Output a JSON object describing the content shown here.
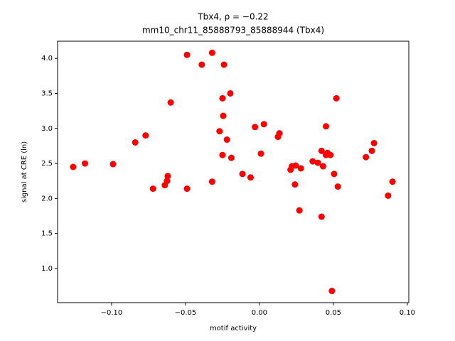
{
  "chart_data": {
    "type": "scatter",
    "title": "Tbx4, ρ = −0.22",
    "subtitle": "mm10_chr11_85888793_85888944 (Tbx4)",
    "x_label": "motif activity",
    "y_label": "signal at CRE (ln)",
    "color": "#ff0000",
    "xlim": [
      -0.1365,
      0.101
    ],
    "ylim": [
      0.513,
      4.245
    ],
    "xticks": [
      {
        "value": -0.1,
        "label": "−0.10"
      },
      {
        "value": -0.05,
        "label": "−0.05"
      },
      {
        "value": 0,
        "label": "0.00"
      },
      0.05,
      {
        "value": 0.1,
        "label": "0.10"
      }
    ],
    "yticks": [
      {
        "value": 1,
        "label": "1.0"
      },
      1.5,
      {
        "value": 2,
        "label": "2.0"
      },
      2.5,
      {
        "value": 3,
        "label": "3.0"
      },
      3.5,
      {
        "value": 4,
        "label": "4.0"
      }
    ],
    "x": [
      -0.126,
      -0.118,
      -0.099,
      -0.084,
      -0.077,
      -0.072,
      -0.064,
      -0.0625,
      -0.062,
      -0.06,
      -0.049,
      -0.049,
      -0.039,
      -0.032,
      -0.032,
      -0.027,
      -0.025,
      -0.025,
      -0.0245,
      -0.024,
      -0.022,
      -0.0197,
      -0.019,
      -0.0115,
      -0.006,
      -0.003,
      0.001,
      0.003,
      0.0125,
      0.0135,
      0.021,
      0.022,
      0.0245,
      0.024,
      0.027,
      0.028,
      0.036,
      0.0395,
      0.042,
      0.042,
      0.043,
      0.045,
      0.045,
      0.046,
      0.048,
      0.049,
      0.0505,
      0.052,
      0.053,
      0.072,
      0.076,
      0.0775,
      0.087,
      0.09
    ],
    "values": [
      2.45,
      2.5,
      2.49,
      2.8,
      2.9,
      2.14,
      2.19,
      2.25,
      2.32,
      3.37,
      4.05,
      2.14,
      3.91,
      4.08,
      2.24,
      2.96,
      3.43,
      2.62,
      3.18,
      3.91,
      2.84,
      3.5,
      2.58,
      2.35,
      2.3,
      3.02,
      2.64,
      3.06,
      2.88,
      2.93,
      2.41,
      2.46,
      2.47,
      2.2,
      1.83,
      2.43,
      2.53,
      2.51,
      1.74,
      2.68,
      2.46,
      3.03,
      2.62,
      2.65,
      2.62,
      0.68,
      2.35,
      3.43,
      2.17,
      2.59,
      2.68,
      2.79,
      2.04,
      2.24
    ]
  }
}
